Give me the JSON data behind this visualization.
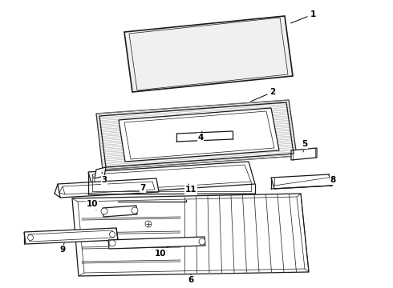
{
  "background_color": "#ffffff",
  "line_color": "#1a1a1a",
  "fig_width": 4.9,
  "fig_height": 3.6,
  "dpi": 100,
  "lw": 0.9,
  "lw_thin": 0.5,
  "lw_thick": 1.2
}
